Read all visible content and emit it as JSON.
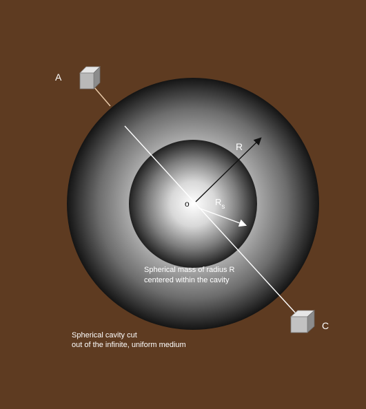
{
  "colors": {
    "background": "#5e3b21",
    "line": "#ffffff",
    "connector": "#e8c9a8",
    "text": "#ffffff"
  },
  "points": {
    "a_label": "A",
    "c_label": "C",
    "o_label": "o"
  },
  "radii": {
    "r_label": "R",
    "rs_label_main": "R",
    "rs_label_sub": "s"
  },
  "captions": {
    "mass_line1": "Spherical mass of radius R",
    "mass_line2": "centered within the cavity",
    "cavity_line1": "Spherical cavity cut",
    "cavity_line2": "out of the infinite, uniform medium"
  },
  "icons": {
    "cube_a": "cube-icon",
    "cube_c": "cube-icon"
  }
}
